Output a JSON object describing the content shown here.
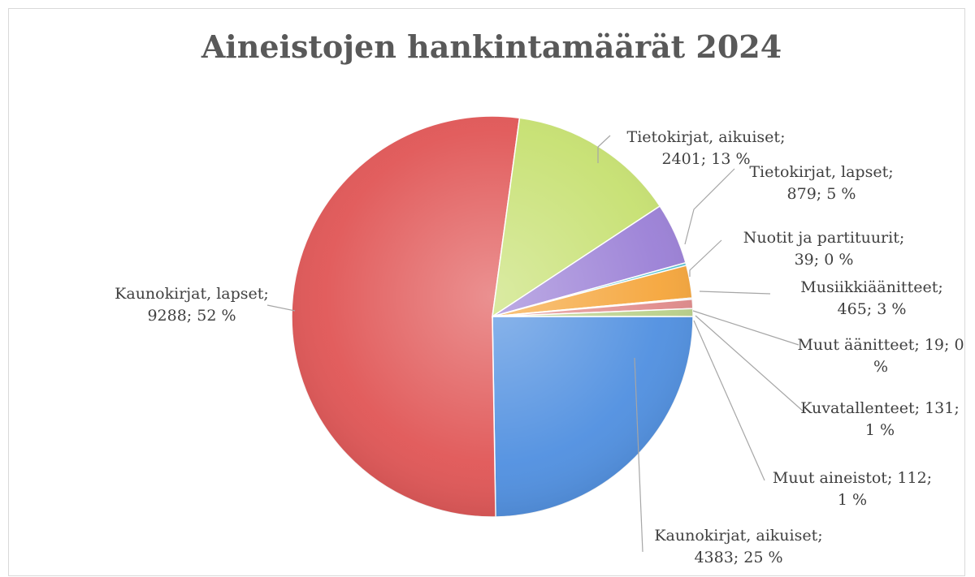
{
  "chart_data": {
    "type": "pie",
    "title": "Aineistojen hankintamäärät 2024",
    "slices": [
      {
        "name": "Kaunokirjat, aikuiset",
        "value": 4383,
        "percent": "25 %",
        "color": "#4f8fe0",
        "label_lines": [
          "Kaunokirjat, aikuiset;",
          "4383; 25 %"
        ]
      },
      {
        "name": "Kaunokirjat, lapset",
        "value": 9288,
        "percent": "52 %",
        "color": "#e05555",
        "label_lines": [
          "Kaunokirjat, lapset;",
          "9288; 52 %"
        ]
      },
      {
        "name": "Tietokirjat, aikuiset",
        "value": 2401,
        "percent": "13 %",
        "color": "#c6e070",
        "label_lines": [
          "Tietokirjat, aikuiset;",
          "2401; 13 %"
        ]
      },
      {
        "name": "Tietokirjat, lapset",
        "value": 879,
        "percent": "5 %",
        "color": "#9a7fd6",
        "label_lines": [
          "Tietokirjat, lapset;",
          "879; 5 %"
        ]
      },
      {
        "name": "Nuotit ja partituurit",
        "value": 39,
        "percent": "0 %",
        "color": "#4ec0d0",
        "label_lines": [
          "Nuotit ja partituurit;",
          "39; 0 %"
        ]
      },
      {
        "name": "Musiikkiäänitteet",
        "value": 465,
        "percent": "3 %",
        "color": "#f5a53a",
        "label_lines": [
          "Musiikkiäänitteet;",
          "465; 3 %"
        ]
      },
      {
        "name": "Muut äänitteet",
        "value": 19,
        "percent": "0 %",
        "color": "#8aa8d8",
        "label_lines": [
          "Muut äänitteet; 19; 0",
          "%"
        ]
      },
      {
        "name": "Kuvatallenteet",
        "value": 131,
        "percent": "1 %",
        "color": "#e08a8a",
        "label_lines": [
          "Kuvatallenteet; 131;",
          "1 %"
        ]
      },
      {
        "name": "Muut aineistot",
        "value": 112,
        "percent": "1 %",
        "color": "#b9d08a",
        "label_lines": [
          "Muut aineistot; 112;",
          "1 %"
        ]
      }
    ]
  }
}
